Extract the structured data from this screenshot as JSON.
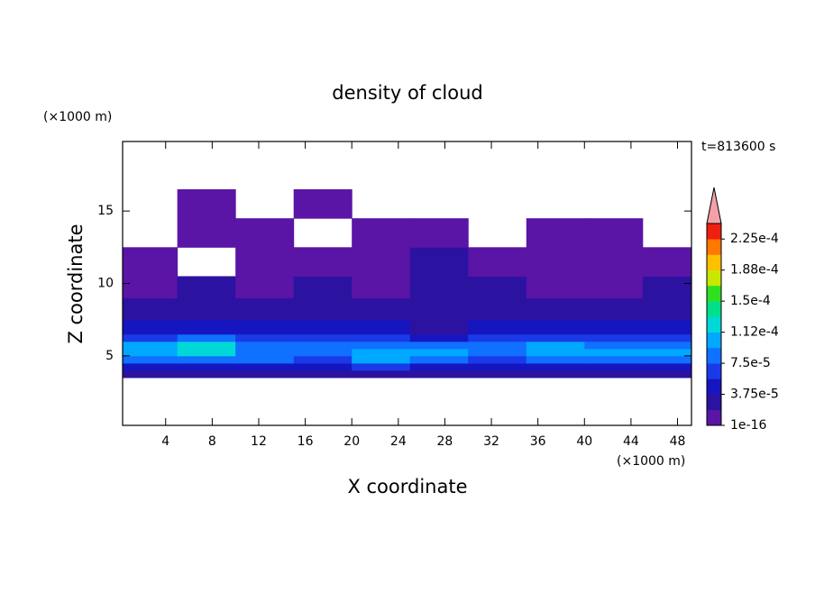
{
  "chart_data": {
    "type": "contour",
    "title": "density of cloud",
    "time_label": "t=813600 s",
    "x_label": "X coordinate",
    "x_unit": "(×1000 m)",
    "y_label": "Z coordinate",
    "y_unit": "(×1000 m)",
    "xlim": [
      0.3,
      49.2
    ],
    "ylim": [
      0.2,
      19.8
    ],
    "xticks": [
      4,
      8,
      12,
      16,
      20,
      24,
      28,
      32,
      36,
      40,
      44,
      48
    ],
    "yticks": [
      5,
      10,
      15
    ],
    "xbins": [
      0,
      5,
      10,
      15,
      20,
      25,
      30,
      35,
      40,
      45,
      50
    ],
    "zbins": [
      3.5,
      4,
      4.5,
      5,
      5.5,
      6,
      6.5,
      7.5,
      9,
      10.5,
      12.5,
      14.5,
      16.5
    ],
    "values": [
      [
        2e-05,
        2e-05,
        2e-05,
        2e-05,
        2e-05,
        2e-05,
        2e-05,
        2e-05,
        2e-05,
        2e-05
      ],
      [
        5e-05,
        4e-05,
        5e-05,
        4e-05,
        6e-05,
        4e-05,
        5e-05,
        4e-05,
        5e-05,
        4e-05
      ],
      [
        8e-05,
        9e-05,
        8e-05,
        7e-05,
        0.0001,
        8e-05,
        7e-05,
        9e-05,
        8e-05,
        9e-05
      ],
      [
        0.0001,
        0.00012,
        9e-05,
        8e-05,
        0.00011,
        0.0001,
        8e-05,
        0.00011,
        0.0001,
        0.0001
      ],
      [
        0.0001,
        0.00013,
        8e-05,
        8e-05,
        8e-05,
        8e-05,
        8e-05,
        0.0001,
        8e-05,
        9e-05
      ],
      [
        7e-05,
        8e-05,
        6e-05,
        6e-05,
        6e-05,
        5e-05,
        6e-05,
        7e-05,
        6e-05,
        7e-05
      ],
      [
        4e-05,
        5e-05,
        4e-05,
        4e-05,
        4e-05,
        3e-05,
        4e-05,
        4e-05,
        4e-05,
        4e-05
      ],
      [
        2e-05,
        3e-05,
        2e-05,
        2e-05,
        2e-05,
        2e-05,
        2e-05,
        2e-05,
        3e-05,
        2e-05
      ],
      [
        1e-05,
        2e-05,
        1e-05,
        2e-05,
        1e-05,
        2e-05,
        2e-05,
        1e-05,
        1e-05,
        2e-05
      ],
      [
        1e-05,
        null,
        1e-16,
        1e-16,
        1e-16,
        2e-05,
        1e-16,
        1e-16,
        1e-16,
        1e-16
      ],
      [
        null,
        1e-16,
        1e-16,
        null,
        1e-16,
        1e-16,
        null,
        1e-16,
        1e-16,
        null
      ],
      [
        null,
        1e-16,
        null,
        1e-16,
        null,
        null,
        null,
        null,
        null,
        null
      ]
    ],
    "levels": [
      1e-16,
      1.875e-05,
      3.75e-05,
      5.625e-05,
      7.5e-05,
      9.375e-05,
      0.000112,
      0.000131,
      0.00015,
      0.000169,
      0.000188,
      0.000206,
      0.000225
    ],
    "colors": [
      "#5a14a6",
      "#2c12a0",
      "#1616c0",
      "#1a3ae8",
      "#1070ff",
      "#00a8ff",
      "#00d8d8",
      "#00e08a",
      "#30e020",
      "#c8e800",
      "#ffc000",
      "#ff7800",
      "#f02010"
    ],
    "extend_color": "#f4a0a8",
    "cticks": [
      {
        "value": 1e-16,
        "label": "1e-16"
      },
      {
        "value": 3.75e-05,
        "label": "3.75e-5"
      },
      {
        "value": 7.5e-05,
        "label": "7.5e-5"
      },
      {
        "value": 0.000112,
        "label": "1.12e-4"
      },
      {
        "value": 0.00015,
        "label": "1.5e-4"
      },
      {
        "value": 0.000188,
        "label": "1.88e-4"
      },
      {
        "value": 0.000225,
        "label": "2.25e-4"
      }
    ]
  }
}
